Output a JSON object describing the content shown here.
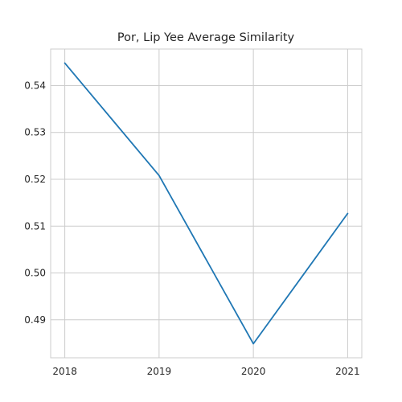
{
  "chart_data": {
    "type": "line",
    "title": "Por, Lip Yee Average Similarity",
    "xlabel": "",
    "ylabel": "",
    "x": [
      "2018",
      "2019",
      "2020",
      "2021"
    ],
    "series": [
      {
        "values": [
          0.5448,
          0.5208,
          0.4849,
          0.5127
        ]
      }
    ],
    "xlim": [
      2017.85,
      2021.15
    ],
    "ylim": [
      0.4819,
      0.5478
    ],
    "yticks": [
      "0.49",
      "0.50",
      "0.51",
      "0.52",
      "0.53",
      "0.54"
    ],
    "ytick_values": [
      0.49,
      0.5,
      0.51,
      0.52,
      0.53,
      0.54
    ],
    "grid": true,
    "legend": "none",
    "colors": {
      "line": "#1f77b4",
      "grid": "#cccccc",
      "text": "#262626"
    }
  }
}
